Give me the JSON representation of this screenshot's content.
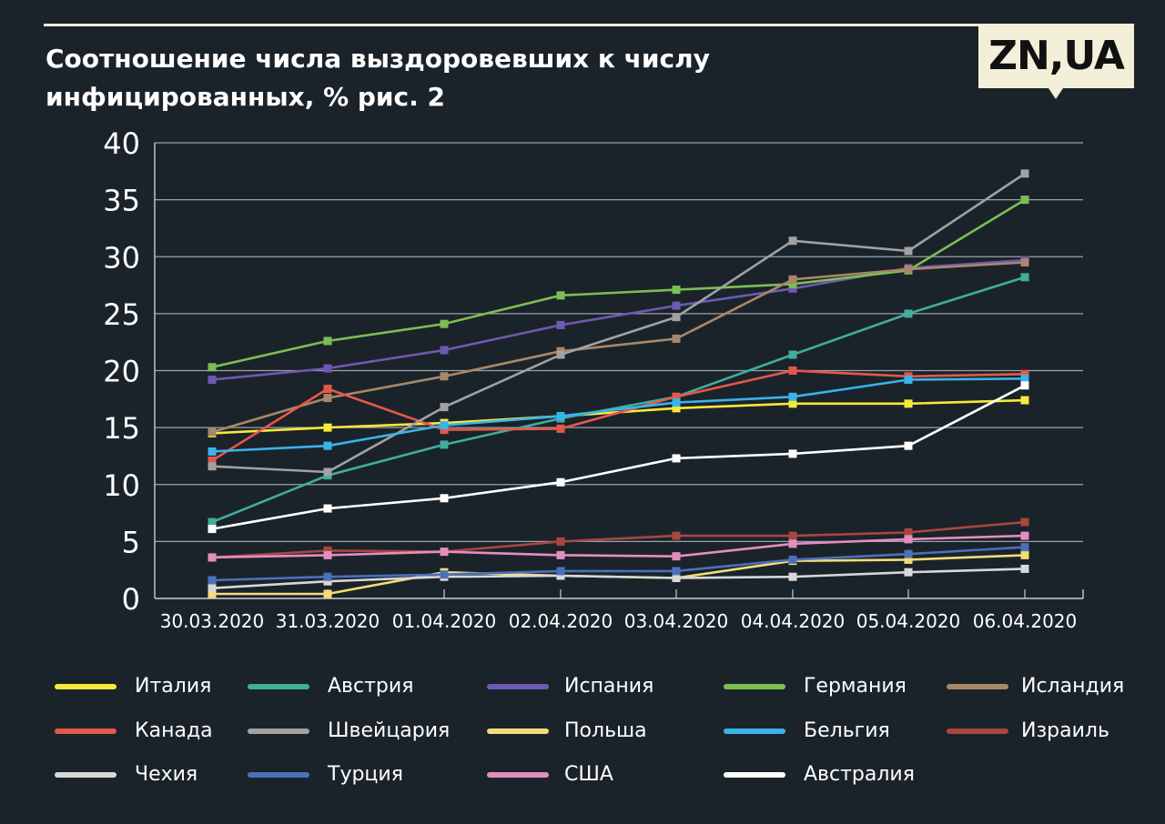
{
  "header": {
    "title": "Соотношение числа выздоровевших к числу инфицированных, % рис. 2",
    "logo_text": "ZN,UA"
  },
  "chart_data": {
    "type": "line",
    "title": "Соотношение числа выздоровевших к числу инфицированных, % рис. 2",
    "xlabel": "",
    "ylabel": "",
    "categories": [
      "30.03.2020",
      "31.03.2020",
      "01.04.2020",
      "02.04.2020",
      "03.04.2020",
      "04.04.2020",
      "05.04.2020",
      "06.04.2020"
    ],
    "ylim": [
      0,
      40
    ],
    "yticks": [
      "0",
      "5",
      "10",
      "15",
      "20",
      "25",
      "30",
      "35",
      "40"
    ],
    "grid": "horizontal",
    "legend_position": "bottom",
    "series": [
      {
        "name": "Италия",
        "color": "#f7e93a",
        "values": [
          14.5,
          15.0,
          15.4,
          16.0,
          16.7,
          17.1,
          17.1,
          17.4
        ]
      },
      {
        "name": "Австрия",
        "color": "#3fae9a",
        "values": [
          6.7,
          10.8,
          13.5,
          15.8,
          17.7,
          21.4,
          25.0,
          28.2
        ]
      },
      {
        "name": "Испания",
        "color": "#6e59b3",
        "values": [
          19.2,
          20.2,
          21.8,
          24.0,
          25.7,
          27.2,
          29.0,
          29.7
        ]
      },
      {
        "name": "Германия",
        "color": "#7dbe52",
        "values": [
          20.3,
          22.6,
          24.1,
          26.6,
          27.1,
          27.6,
          28.8,
          35.0
        ]
      },
      {
        "name": "Исландия",
        "color": "#a8876a",
        "values": [
          14.6,
          17.6,
          19.5,
          21.7,
          22.8,
          28.0,
          28.9,
          29.5
        ]
      },
      {
        "name": "Канада",
        "color": "#e4584a",
        "values": [
          12.1,
          18.4,
          14.8,
          14.9,
          17.7,
          20.0,
          19.5,
          19.7
        ]
      },
      {
        "name": "Швейцария",
        "color": "#a2a2a2",
        "values": [
          11.6,
          11.1,
          16.8,
          21.4,
          24.7,
          31.4,
          30.5,
          37.3
        ]
      },
      {
        "name": "Польша",
        "color": "#f3dc79",
        "values": [
          0.4,
          0.4,
          2.3,
          2.0,
          1.8,
          3.3,
          3.4,
          3.8
        ]
      },
      {
        "name": "Бельгия",
        "color": "#39b3ec",
        "values": [
          12.9,
          13.4,
          15.2,
          16.0,
          17.2,
          17.7,
          19.2,
          19.3
        ]
      },
      {
        "name": "Израиль",
        "color": "#a8463f",
        "values": [
          3.6,
          4.2,
          4.1,
          5.0,
          5.5,
          5.5,
          5.8,
          6.7
        ]
      },
      {
        "name": "Чехия",
        "color": "#d8d8d8",
        "values": [
          0.9,
          1.5,
          1.9,
          2.0,
          1.8,
          1.9,
          2.3,
          2.6
        ]
      },
      {
        "name": "Турция",
        "color": "#4c70b8",
        "values": [
          1.6,
          1.9,
          2.1,
          2.4,
          2.4,
          3.4,
          3.9,
          4.5
        ]
      },
      {
        "name": "США",
        "color": "#e48ebd",
        "values": [
          3.6,
          3.8,
          4.1,
          3.8,
          3.7,
          4.8,
          5.2,
          5.5
        ]
      },
      {
        "name": "Австралия",
        "color": "#ffffff",
        "values": [
          6.1,
          7.9,
          8.8,
          10.2,
          12.3,
          12.7,
          13.4,
          18.7
        ]
      }
    ]
  }
}
